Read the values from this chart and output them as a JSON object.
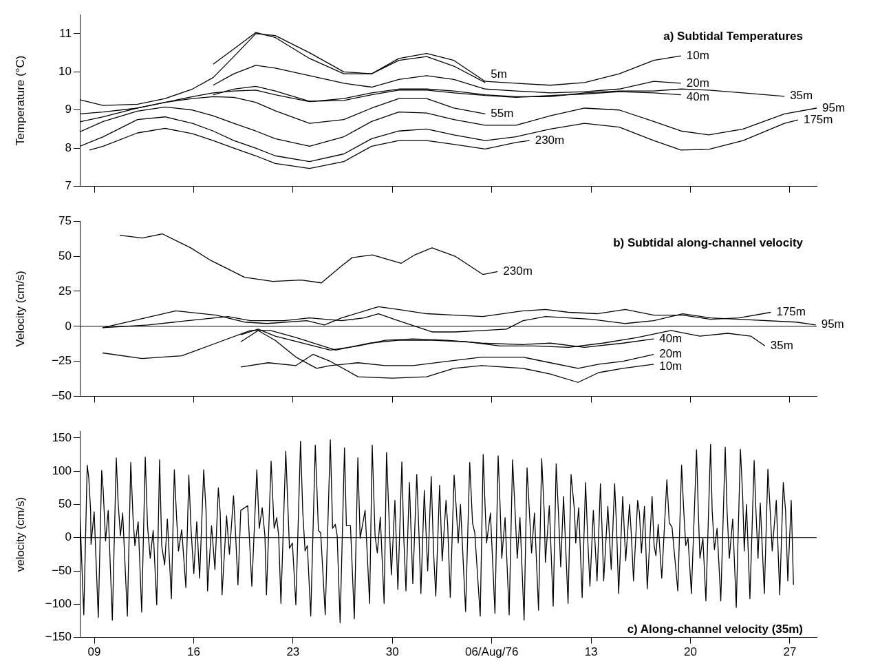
{
  "chart_data": [
    {
      "type": "line",
      "title": "a) Subtidal Temperatures",
      "ylabel": "Temperature (°C)",
      "xlim": [
        "1976-07-07T23:30",
        "1976-08-28T21:30"
      ],
      "ylim": [
        7,
        11.5
      ],
      "tick_labels": "y",
      "xticks": [
        {
          "value": "1976-07-09",
          "label": null
        },
        {
          "value": "1976-07-16",
          "label": null
        },
        {
          "value": "1976-07-23",
          "label": null
        },
        {
          "value": "1976-07-30",
          "label": null
        },
        {
          "value": "1976-08-06",
          "label": null
        },
        {
          "value": "1976-08-13",
          "label": null
        },
        {
          "value": "1976-08-20",
          "label": null
        },
        {
          "value": "1976-08-27",
          "label": null
        }
      ],
      "yticks": [
        7,
        8,
        9,
        10,
        11
      ],
      "series": [
        {
          "name": "10m",
          "color": "#000000",
          "x": [
            "1976-07-17T09:00",
            "1976-07-18T20:00",
            "1976-07-20T09:00",
            "1976-07-21T18:00",
            "1976-07-24T04:00",
            "1976-07-26T14:00",
            "1976-07-28T13:00",
            "1976-07-30T11:00",
            "1976-08-01T10:00",
            "1976-08-03T08:00",
            "1976-08-05T13:00",
            "1976-08-07T17:00",
            "1976-08-10T03:00",
            "1976-08-12T13:00",
            "1976-08-14T23:45",
            "1976-08-17T10:00",
            "1976-08-19T08:00"
          ],
          "values": [
            10.2,
            10.6,
            11.03,
            10.9,
            10.35,
            9.95,
            9.95,
            10.35,
            10.48,
            10.3,
            9.75,
            9.7,
            9.65,
            9.72,
            9.95,
            10.3,
            10.42
          ]
        },
        {
          "name": "5m",
          "color": "#000000",
          "x": [
            "1976-07-07T23:30",
            "1976-07-09T15:00",
            "1976-07-12T01:00",
            "1976-07-13T23:45",
            "1976-07-15T22:00",
            "1976-07-17T09:00",
            "1976-07-18T20:00",
            "1976-07-20T09:00",
            "1976-07-21T18:00",
            "1976-07-24T04:00",
            "1976-07-26T14:00",
            "1976-07-28T13:00",
            "1976-07-30T11:00",
            "1976-08-01T10:00",
            "1976-08-03T08:00",
            "1976-08-05T13:00"
          ],
          "values": [
            9.27,
            9.12,
            9.15,
            9.3,
            9.55,
            9.85,
            10.4,
            11.0,
            10.95,
            10.5,
            10.0,
            9.95,
            10.3,
            10.4,
            10.15,
            9.72
          ]
        },
        {
          "name": "20m",
          "color": "#000000",
          "x": [
            "1976-07-17T09:00",
            "1976-07-18T20:00",
            "1976-07-20T09:00",
            "1976-07-21T18:00",
            "1976-07-24T04:00",
            "1976-07-26T14:00",
            "1976-07-28T13:00",
            "1976-07-30T11:00",
            "1976-08-01T10:00",
            "1976-08-03T08:00",
            "1976-08-05T13:00",
            "1976-08-07T17:00",
            "1976-08-10T03:00",
            "1976-08-12T13:00",
            "1976-08-14T23:45",
            "1976-08-17T10:00",
            "1976-08-19T08:00"
          ],
          "values": [
            9.65,
            9.95,
            10.17,
            10.1,
            9.9,
            9.7,
            9.6,
            9.8,
            9.9,
            9.8,
            9.55,
            9.5,
            9.45,
            9.48,
            9.55,
            9.75,
            9.7
          ]
        },
        {
          "name": "40m",
          "color": "#000000",
          "x": [
            "1976-07-17T09:00",
            "1976-07-18T20:00",
            "1976-07-20T09:00",
            "1976-07-21T18:00",
            "1976-07-24T04:00",
            "1976-07-26T14:00",
            "1976-07-28T13:00",
            "1976-07-30T11:00",
            "1976-08-01T10:00",
            "1976-08-03T08:00",
            "1976-08-05T13:00",
            "1976-08-07T17:00",
            "1976-08-10T03:00",
            "1976-08-12T13:00",
            "1976-08-14T23:45",
            "1976-08-17T10:00",
            "1976-08-19T08:00"
          ],
          "values": [
            9.4,
            9.55,
            9.62,
            9.5,
            9.23,
            9.25,
            9.4,
            9.52,
            9.52,
            9.45,
            9.38,
            9.33,
            9.38,
            9.42,
            9.48,
            9.45,
            9.4
          ]
        },
        {
          "name": "35m",
          "color": "#000000",
          "x": [
            "1976-07-07T23:30",
            "1976-07-09T15:00",
            "1976-07-12T01:00",
            "1976-07-13T23:45",
            "1976-07-15T22:00",
            "1976-07-17T09:00",
            "1976-07-18T20:00",
            "1976-07-20T09:00",
            "1976-07-21T18:00",
            "1976-07-24T04:00",
            "1976-07-26T14:00",
            "1976-07-28T13:00",
            "1976-07-30T11:00",
            "1976-08-01T10:00",
            "1976-08-03T08:00",
            "1976-08-05T13:00",
            "1976-08-07T17:00",
            "1976-08-10T03:00",
            "1976-08-12T13:00",
            "1976-08-14T23:45",
            "1976-08-17T10:00",
            "1976-08-19T08:00",
            "1976-08-21T07:00",
            "1976-08-23T17:00",
            "1976-08-26T15:00"
          ],
          "values": [
            8.9,
            8.95,
            9.05,
            9.2,
            9.35,
            9.45,
            9.5,
            9.52,
            9.4,
            9.22,
            9.3,
            9.45,
            9.55,
            9.55,
            9.5,
            9.4,
            9.35,
            9.35,
            9.45,
            9.5,
            9.5,
            9.55,
            9.52,
            9.45,
            9.36
          ]
        },
        {
          "name": "55m",
          "color": "#000000",
          "x": [
            "1976-07-07T23:30",
            "1976-07-09T15:00",
            "1976-07-12T01:00",
            "1976-07-13T23:45",
            "1976-07-15T22:00",
            "1976-07-17T09:00",
            "1976-07-18T20:00",
            "1976-07-20T09:00",
            "1976-07-21T18:00",
            "1976-07-24T04:00",
            "1976-07-26T14:00",
            "1976-07-28T13:00",
            "1976-07-30T11:00",
            "1976-08-01T10:00",
            "1976-08-03T08:00",
            "1976-08-05T13:00"
          ],
          "values": [
            8.69,
            8.82,
            9.05,
            9.2,
            9.3,
            9.35,
            9.33,
            9.2,
            8.98,
            8.65,
            8.75,
            9.05,
            9.3,
            9.3,
            9.05,
            8.9
          ]
        },
        {
          "name": "175m",
          "color": "#000000",
          "x": [
            "1976-07-07T23:30",
            "1976-07-09T15:00",
            "1976-07-12T01:00",
            "1976-07-13T23:45",
            "1976-07-15T22:00",
            "1976-07-17T09:00",
            "1976-07-18T20:00",
            "1976-07-20T09:00",
            "1976-07-21T18:00",
            "1976-07-24T04:00",
            "1976-07-26T14:00",
            "1976-07-28T13:00",
            "1976-07-30T11:00",
            "1976-08-01T10:00",
            "1976-08-03T08:00",
            "1976-08-05T13:00",
            "1976-08-07T17:00",
            "1976-08-10T03:00",
            "1976-08-12T13:00",
            "1976-08-14T23:45",
            "1976-08-17T10:00",
            "1976-08-19T08:00",
            "1976-08-21T07:00",
            "1976-08-23T17:00",
            "1976-08-26T15:00",
            "1976-08-27T14:00"
          ],
          "values": [
            8.05,
            8.3,
            8.75,
            8.82,
            8.65,
            8.45,
            8.2,
            8.0,
            7.8,
            7.65,
            7.85,
            8.25,
            8.45,
            8.5,
            8.35,
            8.2,
            8.3,
            8.5,
            8.65,
            8.55,
            8.2,
            7.95,
            7.97,
            8.2,
            8.65,
            8.74
          ]
        },
        {
          "name": "95m",
          "color": "#000000",
          "x": [
            "1976-07-07T23:30",
            "1976-07-09T15:00",
            "1976-07-12T01:00",
            "1976-07-13T23:45",
            "1976-07-15T22:00",
            "1976-07-17T09:00",
            "1976-07-18T20:00",
            "1976-07-20T09:00",
            "1976-07-21T18:00",
            "1976-07-24T04:00",
            "1976-07-26T14:00",
            "1976-07-28T13:00",
            "1976-07-30T11:00",
            "1976-08-01T10:00",
            "1976-08-03T08:00",
            "1976-08-05T13:00",
            "1976-08-07T17:00",
            "1976-08-10T03:00",
            "1976-08-12T13:00",
            "1976-08-14T23:45",
            "1976-08-17T10:00",
            "1976-08-19T08:00",
            "1976-08-21T07:00",
            "1976-08-23T17:00",
            "1976-08-26T15:00",
            "1976-08-28T21:30"
          ],
          "values": [
            8.43,
            8.7,
            8.97,
            9.08,
            9.0,
            8.85,
            8.65,
            8.45,
            8.25,
            8.05,
            8.3,
            8.7,
            8.95,
            8.92,
            8.75,
            8.6,
            8.6,
            8.85,
            9.05,
            9.0,
            8.7,
            8.45,
            8.35,
            8.5,
            8.9,
            9.05
          ]
        },
        {
          "name": "230m",
          "color": "#000000",
          "x": [
            "1976-07-08T16:00",
            "1976-07-09T15:00",
            "1976-07-12T01:00",
            "1976-07-13T23:45",
            "1976-07-15T22:00",
            "1976-07-17T09:00",
            "1976-07-18T20:00",
            "1976-07-20T09:00",
            "1976-07-21T18:00",
            "1976-07-24T04:00",
            "1976-07-26T14:00",
            "1976-07-28T13:00",
            "1976-07-30T11:00",
            "1976-08-01T10:00",
            "1976-08-03T08:00",
            "1976-08-05T13:00",
            "1976-08-07T17:00",
            "1976-08-08T16:00"
          ],
          "values": [
            7.95,
            8.05,
            8.4,
            8.52,
            8.38,
            8.2,
            8.0,
            7.8,
            7.6,
            7.47,
            7.65,
            8.05,
            8.2,
            8.2,
            8.1,
            7.98,
            8.15,
            8.2
          ]
        }
      ]
    },
    {
      "type": "line",
      "title": "b) Subtidal along-channel velocity",
      "ylabel": "Velocity (cm/s)",
      "xlim": [
        "1976-07-07T23:30",
        "1976-08-28T21:30"
      ],
      "ylim": [
        -50,
        75
      ],
      "tick_labels": "y",
      "xticks": [
        {
          "value": "1976-07-09",
          "label": null
        },
        {
          "value": "1976-07-16",
          "label": null
        },
        {
          "value": "1976-07-23",
          "label": null
        },
        {
          "value": "1976-07-30",
          "label": null
        },
        {
          "value": "1976-08-06",
          "label": null
        },
        {
          "value": "1976-08-13",
          "label": null
        },
        {
          "value": "1976-08-20",
          "label": null
        },
        {
          "value": "1976-08-27",
          "label": null
        }
      ],
      "yticks": [
        -50,
        -25,
        0,
        25,
        50,
        75
      ],
      "ref_lines": [
        {
          "axis": "y",
          "value": 0,
          "color": "#000000"
        }
      ],
      "series": [
        {
          "name": "230m",
          "color": "#000000",
          "x": [
            "1976-07-10T19:00",
            "1976-07-12T09:00",
            "1976-07-13T19:00",
            "1976-07-15T19:00",
            "1976-07-17T05:00",
            "1976-07-19T14:00",
            "1976-07-21T14:00",
            "1976-07-23T14:00",
            "1976-07-25T00:00",
            "1976-07-26T10:00",
            "1976-07-27T04:00",
            "1976-07-28T14:00",
            "1976-07-30T15:00",
            "1976-07-31T14:00",
            "1976-08-01T19:00",
            "1976-08-03T10:00",
            "1976-08-05T09:00",
            "1976-08-06T10:00"
          ],
          "values": [
            65,
            63,
            66,
            56,
            47,
            35,
            32,
            33,
            31,
            43,
            49,
            51,
            45,
            51,
            56,
            50,
            37,
            39
          ]
        },
        {
          "name": "175m",
          "color": "#000000",
          "x": [
            "1976-07-09T14:00",
            "1976-07-14T18:00",
            "1976-07-17T14:00",
            "1976-07-19T14:00",
            "1976-07-21T04:00",
            "1976-07-23T23:30",
            "1976-07-25T05:00",
            "1976-07-26T10:00",
            "1976-07-29T00:30",
            "1976-07-30T10:00",
            "1976-08-01T10:00",
            "1976-08-03T10:00",
            "1976-08-05T09:00",
            "1976-08-08T05:00",
            "1976-08-09T19:00",
            "1976-08-11T10:00",
            "1976-08-13T10:00",
            "1976-08-15T10:00",
            "1976-08-17T10:00",
            "1976-08-19T11:00",
            "1976-08-21T10:00",
            "1976-08-23T10:00",
            "1976-08-25T16:00"
          ],
          "values": [
            -1,
            11,
            8,
            3,
            2,
            4,
            1,
            6,
            14,
            12,
            9,
            8,
            7,
            11,
            12,
            10,
            9,
            12,
            8,
            8,
            5,
            6,
            10
          ]
        },
        {
          "name": "95m",
          "color": "#000000",
          "x": [
            "1976-07-09T14:00",
            "1976-07-12T19:00",
            "1976-07-15T14:00",
            "1976-07-18T10:00",
            "1976-07-20T00:00",
            "1976-07-22T09:00",
            "1976-07-24T04:00",
            "1976-07-26T10:00",
            "1976-07-28T00:00",
            "1976-07-29T00:30",
            "1976-07-30T10:00",
            "1976-08-01T19:00",
            "1976-08-03T10:00",
            "1976-08-05T09:00",
            "1976-08-07T01:00",
            "1976-08-08T05:00",
            "1976-08-09T19:00",
            "1976-08-13T01:00",
            "1976-08-15T10:00",
            "1976-08-17T10:00",
            "1976-08-19T11:00",
            "1976-08-21T10:00",
            "1976-08-23T10:00",
            "1976-08-27T11:00",
            "1976-08-28T20:00"
          ],
          "values": [
            -1,
            1,
            4,
            7,
            4,
            4,
            6,
            4,
            6,
            9,
            4,
            -4,
            -4,
            -3,
            -2,
            4,
            7,
            5,
            2,
            4,
            9,
            6,
            5,
            3,
            1
          ]
        },
        {
          "name": "40m",
          "color": "#000000",
          "x": [
            "1976-07-19T08:00",
            "1976-07-20T13:00",
            "1976-07-21T18:00",
            "1976-07-23T17:00",
            "1976-07-25T15:00",
            "1976-07-27T14:00",
            "1976-07-29T12:00",
            "1976-07-31T11:00",
            "1976-08-02T21:00",
            "1976-08-05T07:00",
            "1976-08-08T05:00",
            "1976-08-10T03:00",
            "1976-08-12T13:00",
            "1976-08-15T06:00",
            "1976-08-17T10:00"
          ],
          "values": [
            -6,
            -2,
            -7,
            -12,
            -17,
            -14,
            -10,
            -9,
            -10,
            -12,
            -13,
            -12,
            -15,
            -12,
            -9
          ]
        },
        {
          "name": "35m",
          "color": "#000000",
          "x": [
            "1976-07-09T14:00",
            "1976-07-12T09:00",
            "1976-07-15T04:00",
            "1976-07-17T14:00",
            "1976-07-20T00:00",
            "1976-07-21T10:00",
            "1976-07-23T05:00",
            "1976-07-26T00:15",
            "1976-07-28T09:00",
            "1976-07-30T10:00",
            "1976-08-01T19:00",
            "1976-08-04T05:00",
            "1976-08-06T14:00",
            "1976-08-09T00:30",
            "1976-08-11T10:00",
            "1976-08-13T20:00",
            "1976-08-16T06:00",
            "1976-08-18T15:00",
            "1976-08-20T16:00",
            "1976-08-22T15:00",
            "1976-08-24T06:00",
            "1976-08-25T06:00"
          ],
          "values": [
            -19,
            -23,
            -21,
            -12,
            -3,
            -3,
            -8,
            -17,
            -12,
            -10,
            -10,
            -11,
            -14,
            -14,
            -15,
            -12,
            -8,
            -3,
            -7,
            -5,
            -7,
            -14
          ]
        },
        {
          "name": "20m",
          "color": "#000000",
          "x": [
            "1976-07-19T08:00",
            "1976-07-20T13:00",
            "1976-07-21T18:00",
            "1976-07-23T05:00",
            "1976-07-24T16:00",
            "1976-07-25T15:00",
            "1976-07-27T14:00",
            "1976-07-29T12:00",
            "1976-07-31T11:00",
            "1976-08-02T21:00",
            "1976-08-05T07:00",
            "1976-08-08T05:00",
            "1976-08-10T03:00",
            "1976-08-12T02:00",
            "1976-08-13T13:00",
            "1976-08-15T06:00",
            "1976-08-17T10:00"
          ],
          "values": [
            -11,
            -3,
            -10,
            -22,
            -30,
            -28,
            -26,
            -28,
            -28,
            -25,
            -22,
            -22,
            -26,
            -30,
            -27,
            -25,
            -20
          ]
        },
        {
          "name": "10m",
          "color": "#000000",
          "x": [
            "1976-07-19T08:00",
            "1976-07-21T06:00",
            "1976-07-23T05:00",
            "1976-07-24T10:00",
            "1976-07-25T15:00",
            "1976-07-27T14:00",
            "1976-07-29T23:45",
            "1976-08-01T10:00",
            "1976-08-03T08:00",
            "1976-08-05T07:00",
            "1976-08-08T05:00",
            "1976-08-10T03:00",
            "1976-08-12T02:00",
            "1976-08-13T13:00",
            "1976-08-15T06:00",
            "1976-08-17T10:00"
          ],
          "values": [
            -29,
            -26,
            -28,
            -20,
            -25,
            -36,
            -37,
            -36,
            -30,
            -28,
            -30,
            -34,
            -40,
            -33,
            -30,
            -27
          ]
        }
      ]
    },
    {
      "type": "line",
      "title": "c) Along-channel velocity (35m)",
      "ylabel": "velocity (cm/s)",
      "xlim": [
        "1976-07-07T23:30",
        "1976-08-28T21:30"
      ],
      "ylim": [
        -150,
        160
      ],
      "xticks": [
        {
          "value": "1976-07-09",
          "label": "09"
        },
        {
          "value": "1976-07-16",
          "label": "16"
        },
        {
          "value": "1976-07-23",
          "label": "23"
        },
        {
          "value": "1976-07-30",
          "label": "30"
        },
        {
          "value": "1976-08-06",
          "label": "06/Aug/76"
        },
        {
          "value": "1976-08-13",
          "label": "13"
        },
        {
          "value": "1976-08-20",
          "label": "20"
        },
        {
          "value": "1976-08-27",
          "label": "27"
        }
      ],
      "yticks": [
        -150,
        -100,
        -50,
        0,
        50,
        100,
        150
      ],
      "ref_lines": [
        {
          "axis": "y",
          "value": 0,
          "color": "#000000"
        }
      ],
      "series": [
        {
          "color": "#000000",
          "x": [
            "1976-07-07T23:30",
            "1976-07-08T00:45",
            "1976-07-08T06:15",
            "1976-07-08T12:00",
            "1976-07-08T14:40",
            "1976-07-08T17:45",
            "1976-07-08T18:30",
            "1976-07-08T23:45",
            "1976-07-09T06:45",
            "1976-07-09T12:30",
            "1976-07-09T15:05",
            "1976-07-09T19:00",
            "1976-07-09T23:30",
            "1976-07-10T06:30",
            "1976-07-10T13:10",
            "1976-07-10T16:20",
            "1976-07-10T20:10",
            "1976-07-11T00:00",
            "1976-07-11T07:55",
            "1976-07-11T13:40",
            "1976-07-11T17:30",
            "1976-07-11T20:40",
            "1976-07-12T02:10",
            "1976-07-12T08:10",
            "1976-07-12T14:10",
            "1976-07-12T18:00",
            "1976-07-12T22:35",
            "1976-07-13T03:35",
            "1976-07-13T09:35",
            "1976-07-13T14:25",
            "1976-07-13T18:00",
            "1976-07-13T23:00",
            "1976-07-14T03:35",
            "1976-07-14T10:20",
            "1976-07-14T15:20",
            "1976-07-14T19:10",
            "1976-07-14T22:20",
            "1976-07-15T03:50",
            "1976-07-15T10:50",
            "1976-07-15T15:50",
            "1976-07-15T19:40",
            "1976-07-16T00:15",
            "1976-07-16T05:15",
            "1976-07-16T10:05",
            "1976-07-16T17:00",
            "1976-07-16T20:55",
            "1976-07-16T23:30",
            "1976-07-17T06:15",
            "1976-07-17T12:00",
            "1976-07-17T17:45",
            "1976-07-17T20:55",
            "1976-07-18T00:00",
            "1976-07-18T07:40",
            "1976-07-18T12:30",
            "1976-07-18T19:25",
            "1976-07-18T22:35",
            "1976-07-19T02:55",
            "1976-07-19T07:40",
            "1976-07-19T19:25",
            "1976-07-20T02:25",
            "1976-07-20T10:50",
            "1976-07-20T14:55",
            "1976-07-20T19:55",
            "1976-07-21T00:30",
            "1976-07-21T03:05",
            "1976-07-21T11:00",
            "1976-07-21T16:05",
            "1976-07-21T20:25",
            "1976-07-21T23:45",
            "1976-07-22T03:35",
            "1976-07-22T11:45",
            "1976-07-22T18:00",
            "1976-07-22T23:00",
            "1976-07-23T04:50",
            "1976-07-23T12:45",
            "1976-07-23T16:35",
            "1976-07-23T20:25",
            "1976-07-24T00:15",
            "1976-07-24T06:00",
            "1976-07-24T13:40",
            "1976-07-24T19:00",
            "1976-07-24T22:50",
            "1976-07-25T06:30",
            "1976-07-25T15:05",
            "1976-07-25T19:00",
            "1976-07-25T23:30",
            "1976-07-26T02:40",
            "1976-07-26T07:40",
            "1976-07-26T15:05",
            "1976-07-26T18:15",
            "1976-07-27T01:10",
            "1976-07-27T07:40",
            "1976-07-27T13:40",
            "1976-07-27T17:30",
            "1976-07-28T01:55",
            "1976-07-28T09:35",
            "1976-07-28T13:55",
            "1976-07-28T18:45",
            "1976-07-28T22:35",
            "1976-07-29T03:35",
            "1976-07-29T10:05",
            "1976-07-29T14:10",
            "1976-07-29T19:10",
            "1976-07-29T22:20",
            "1976-07-30T04:20",
            "1976-07-30T09:20",
            "1976-07-30T16:05",
            "1976-07-30T19:10",
            "1976-07-30T23:00",
            "1976-07-31T04:50",
            "1976-07-31T10:35",
            "1976-07-31T17:15",
            "1976-07-31T21:05",
            "1976-08-01T00:15",
            "1976-08-01T06:00",
            "1976-08-01T11:45",
            "1976-08-01T17:45",
            "1976-08-01T21:35",
            "1976-08-02T01:25",
            "1976-08-02T07:55",
            "1976-08-02T12:15",
            "1976-08-02T18:45",
            "1976-08-02T21:35",
            "1976-08-03T01:55",
            "1976-08-03T08:25",
            "1976-08-03T12:15",
            "1976-08-03T15:20",
            "1976-08-03T19:10",
            "1976-08-04T03:50",
            "1976-08-04T10:50",
            "1976-08-04T15:35",
            "1976-08-04T19:25",
            "1976-08-05T04:35",
            "1976-08-05T09:35",
            "1976-08-05T12:45",
            "1976-08-05T15:20",
            "1976-08-05T21:50",
            "1976-08-06T05:30",
            "1976-08-06T10:50",
            "1976-08-06T14:10",
            "1976-08-06T17:00",
            "1976-08-06T22:35",
            "1976-08-07T05:30",
            "1976-08-07T11:15",
            "1976-08-07T15:05",
            "1976-08-07T19:10",
            "1976-08-07T23:45",
            "1976-08-08T06:45",
            "1976-08-08T11:45",
            "1976-08-08T15:35",
            "1976-08-08T19:25",
            "1976-08-09T00:15",
            "1976-08-09T07:10",
            "1976-08-09T12:30",
            "1976-08-09T16:50",
            "1976-08-09T18:45",
            "1976-08-10T01:25",
            "1976-08-10T07:55",
            "1976-08-10T13:00",
            "1976-08-10T16:50",
            "1976-08-10T20:40",
            "1976-08-11T01:25",
            "1976-08-11T09:05",
            "1976-08-11T14:10",
            "1976-08-11T19:55",
            "1976-08-11T22:05",
            "1976-08-12T03:05",
            "1976-08-12T08:55",
            "1976-08-12T14:40",
            "1976-08-12T18:30",
            "1976-08-12T22:05",
            "1976-08-13T03:50",
            "1976-08-13T10:05",
            "1976-08-13T15:50",
            "1976-08-13T18:30",
            "1976-08-13T21:20",
            "1976-08-14T04:20",
            "1976-08-14T10:05",
            "1976-08-14T15:50",
            "1976-08-14T19:00",
            "1976-08-14T22:35",
            "1976-08-15T05:30",
            "1976-08-15T10:35",
            "1976-08-15T17:00",
            "1976-08-15T20:10",
            "1976-08-15T23:45",
            "1976-08-16T06:45",
            "1976-08-16T09:50",
            "1976-08-16T13:10",
            "1976-08-16T18:15",
            "1976-08-16T23:00",
            "1976-08-17T07:10",
            "1976-08-17T10:35",
            "1976-08-17T13:40",
            "1976-08-17T17:30",
            "1976-08-17T23:30",
            "1976-08-18T08:10",
            "1976-08-18T12:15",
            "1976-08-18T16:50",
            "1976-08-19T02:40",
            "1976-08-19T09:05",
            "1976-08-19T12:15",
            "1976-08-19T16:05",
            "1976-08-19T19:55",
            "1976-08-20T01:40",
            "1976-08-20T10:20",
            "1976-08-20T13:25",
            "1976-08-20T16:05",
            "1976-08-20T21:05",
            "1976-08-21T02:10",
            "1976-08-21T10:05",
            "1976-08-21T12:45",
            "1976-08-21T16:35",
            "1976-08-21T21:05",
            "1976-08-22T03:20",
            "1976-08-22T10:50",
            "1976-08-22T13:55",
            "1976-08-22T17:45",
            "1976-08-22T23:30",
            "1976-08-23T05:30",
            "1976-08-23T12:30",
            "1976-08-23T16:20",
            "1976-08-23T19:00",
            "1976-08-23T22:50",
            "1976-08-24T04:35",
            "1976-08-24T11:45",
            "1976-08-24T14:25",
            "1976-08-24T18:15",
            "1976-08-24T22:05",
            "1976-08-25T05:00",
            "1976-08-25T11:00",
            "1976-08-25T14:25",
            "1976-08-25T18:15",
            "1976-08-26T01:10",
            "1976-08-26T07:00",
            "1976-08-26T13:00",
            "1976-08-26T16:50",
            "1976-08-26T20:40",
            "1976-08-27T02:25",
            "1976-08-27T06:15"
          ],
          "values": [
            45,
            10,
            -116,
            109,
            90,
            41,
            -10,
            39,
            -120,
            101,
            71,
            -5,
            41,
            -124,
            120,
            52,
            3,
            37,
            -118,
            113,
            30,
            -12,
            24,
            -112,
            121,
            18,
            -31,
            11,
            -101,
            117,
            -12,
            -41,
            28,
            -92,
            102,
            30,
            -20,
            12,
            -75,
            94,
            11,
            -54,
            24,
            -61,
            102,
            41,
            -80,
            18,
            -48,
            75,
            37,
            -86,
            33,
            -25,
            63,
            11,
            -71,
            41,
            48,
            -73,
            102,
            14,
            45,
            3,
            -86,
            115,
            14,
            30,
            3,
            -99,
            130,
            -16,
            -8,
            -101,
            145,
            37,
            -20,
            -12,
            -118,
            139,
            11,
            7,
            -116,
            147,
            14,
            20,
            3,
            -128,
            135,
            18,
            18,
            -122,
            120,
            -1,
            41,
            -99,
            139,
            3,
            -23,
            31,
            -99,
            128,
            11,
            -56,
            56,
            -78,
            114,
            3,
            -80,
            83,
            -69,
            95,
            3,
            -84,
            71,
            -50,
            92,
            -20,
            -88,
            79,
            -35,
            56,
            18,
            -90,
            94,
            41,
            -8,
            50,
            -111,
            113,
            22,
            7,
            -118,
            125,
            48,
            -8,
            37,
            -114,
            123,
            48,
            -31,
            30,
            -116,
            117,
            48,
            -31,
            30,
            -124,
            105,
            41,
            -23,
            37,
            -109,
            119,
            37,
            -37,
            48,
            -103,
            111,
            37,
            -44,
            62,
            -99,
            95,
            41,
            -8,
            45,
            -90,
            83,
            -5,
            -73,
            41,
            -65,
            81,
            14,
            -65,
            47,
            -48,
            81,
            18,
            -84,
            62,
            -35,
            50,
            3,
            -65,
            56,
            37,
            -23,
            47,
            -77,
            62,
            -12,
            -27,
            20,
            -61,
            87,
            22,
            16,
            -80,
            109,
            48,
            -12,
            -1,
            -84,
            132,
            37,
            -31,
            -1,
            -95,
            140,
            41,
            -18,
            14,
            -95,
            136,
            41,
            -31,
            28,
            -105,
            133,
            64,
            -20,
            50,
            -92,
            116,
            48,
            -31,
            52,
            -84,
            103,
            48,
            -20,
            56,
            -86,
            83,
            41,
            -65,
            56,
            -71
          ]
        }
      ]
    }
  ]
}
